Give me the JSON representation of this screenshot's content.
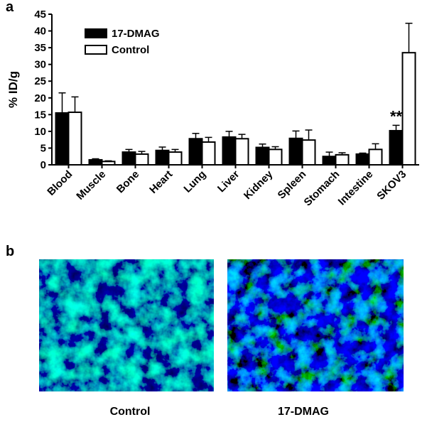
{
  "panel_labels": [
    "a",
    "b"
  ],
  "image_captions": [
    "Control",
    "17-DMAG"
  ],
  "chart_data": {
    "type": "bar",
    "y_label": "% ID/g",
    "annotation": "**",
    "categories": [
      "Blood",
      "Muscle",
      "Bone",
      "Heart",
      "Lung",
      "Liver",
      "Kidney",
      "Spleen",
      "Stomach",
      "Intestine",
      "SKOV3"
    ],
    "series": [
      {
        "name": "17-DMAG",
        "color": "#000000",
        "values": [
          15.5,
          1.5,
          3.8,
          4.3,
          7.8,
          8.3,
          5.2,
          7.9,
          2.5,
          3.2,
          10.2
        ],
        "errors": [
          6.0,
          0.3,
          0.8,
          1.0,
          1.6,
          1.7,
          1.0,
          2.2,
          1.3,
          0.3,
          1.6
        ]
      },
      {
        "name": "Control",
        "color": "#ffffff",
        "values": [
          15.7,
          1.0,
          3.2,
          3.8,
          6.8,
          7.8,
          4.6,
          7.4,
          3.0,
          4.6,
          33.5
        ],
        "errors": [
          4.6,
          0.2,
          0.8,
          0.8,
          1.4,
          1.3,
          0.8,
          3.0,
          0.6,
          1.7,
          8.8
        ]
      }
    ],
    "ylim": [
      0,
      45
    ],
    "yticks": [
      0,
      5,
      10,
      15,
      20,
      25,
      30,
      35,
      40,
      45
    ],
    "legend": "upper left"
  }
}
